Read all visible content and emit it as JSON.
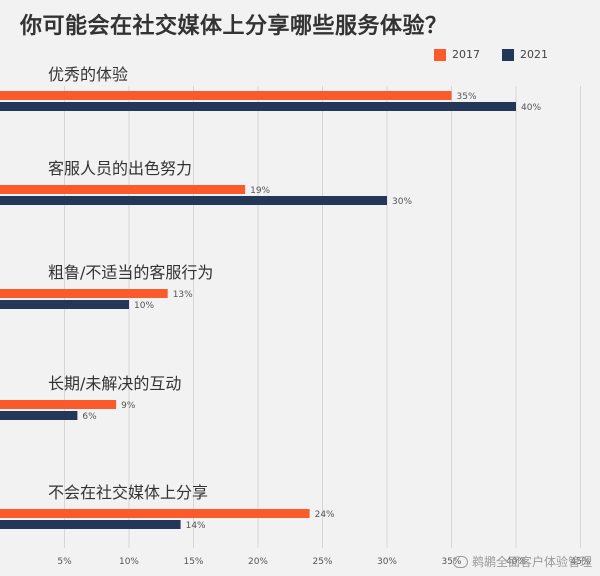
{
  "title": "你可能会在社交媒体上分享哪些服务体验？",
  "watermark": "鹈鹕全面客户体验管理",
  "colors": {
    "series_2017": "#fb5a2b",
    "series_2021": "#243758",
    "background": "#f2f2f2"
  },
  "chart_data": {
    "type": "bar",
    "orientation": "horizontal",
    "title": "你可能会在社交媒体上分享哪些服务体验？",
    "categories": [
      "优秀的体验",
      "客服人员的出色努力",
      "粗鲁/不适当的客服行为",
      "长期/未解决的互动",
      "不会在社交媒体上分享"
    ],
    "series": [
      {
        "name": "2017",
        "values": [
          35,
          19,
          13,
          9,
          24
        ],
        "labels": [
          "35%",
          "19%",
          "13%",
          "9%",
          "24%"
        ]
      },
      {
        "name": "2021",
        "values": [
          40,
          30,
          10,
          6,
          14
        ],
        "labels": [
          "40%",
          "30%",
          "10%",
          "6%",
          "14%"
        ]
      }
    ],
    "xlim": [
      0,
      45
    ],
    "x_ticks": [
      "5%",
      "10%",
      "15%",
      "20%",
      "25%",
      "30%",
      "35%",
      "40%",
      "45%"
    ],
    "grid": true,
    "legend_position": "top-right"
  }
}
